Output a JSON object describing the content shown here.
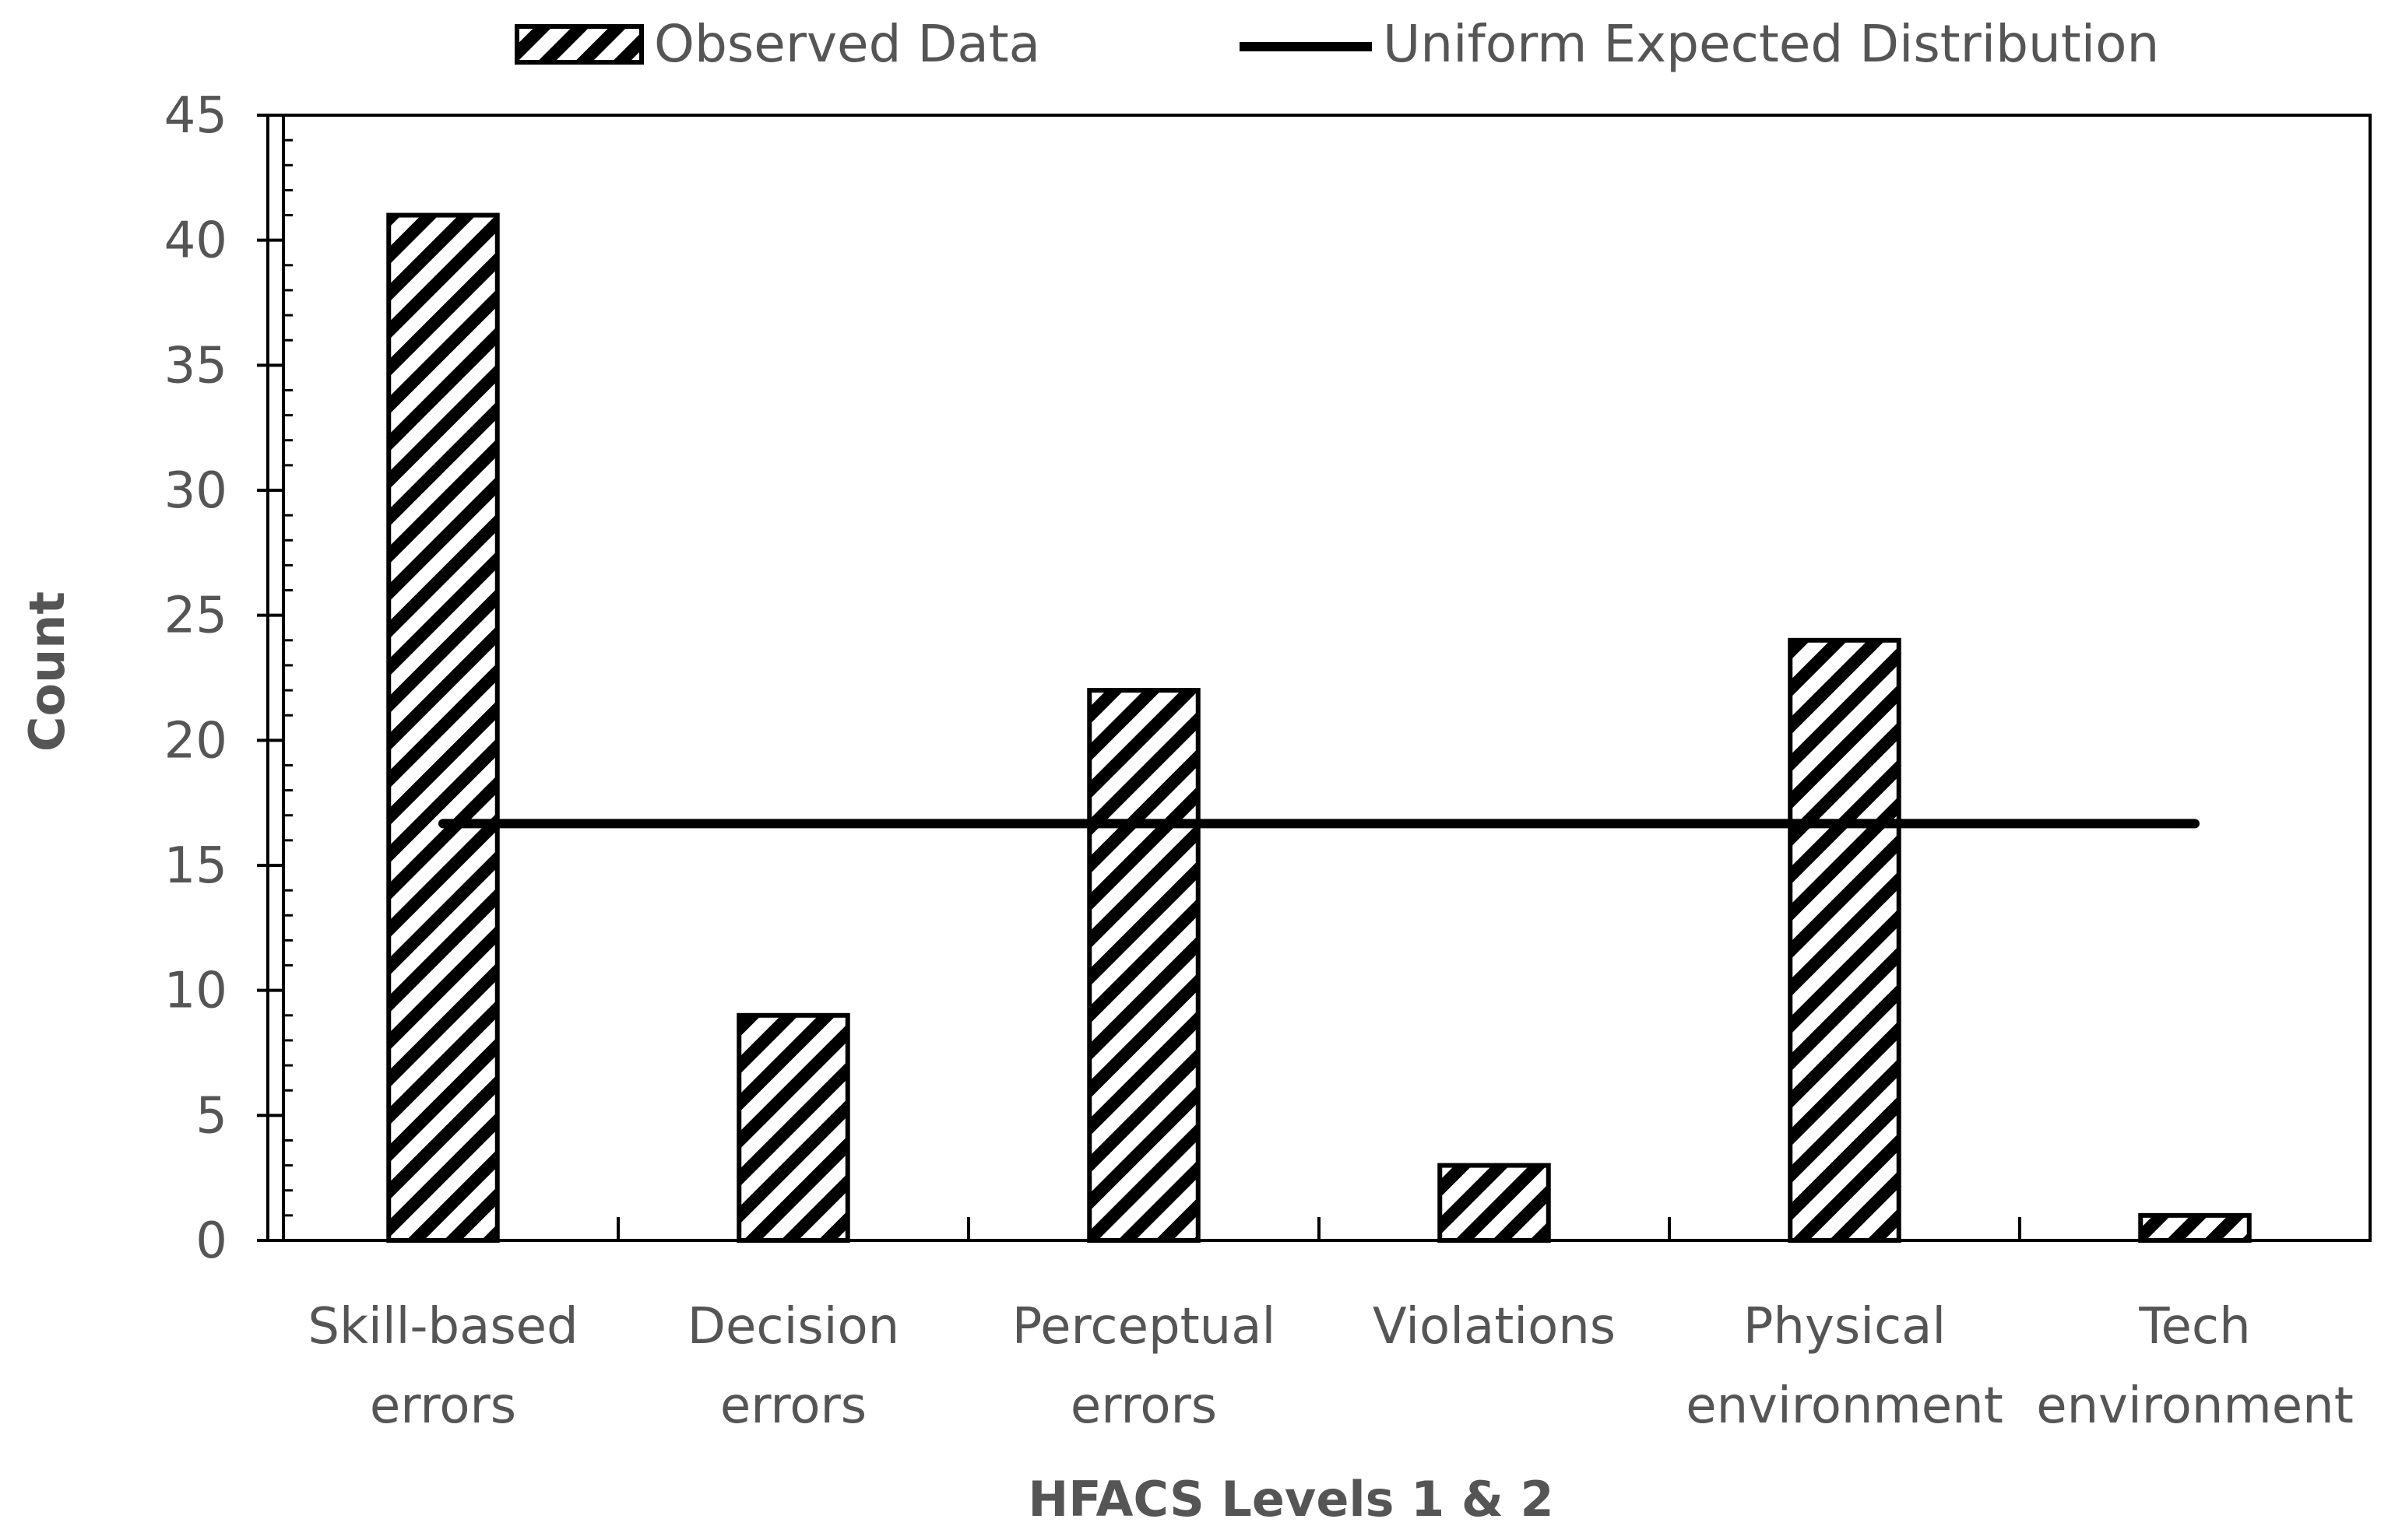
{
  "chart_data": {
    "type": "bar",
    "categories": [
      [
        "Skill-based",
        "errors"
      ],
      [
        "Decision",
        "errors"
      ],
      [
        "Perceptual",
        "errors"
      ],
      [
        "Violations"
      ],
      [
        "Physical",
        "environment"
      ],
      [
        "Tech",
        "environment"
      ]
    ],
    "series": [
      {
        "name": "Observed Data",
        "kind": "bar",
        "values": [
          41,
          9,
          22,
          3,
          24,
          1
        ]
      },
      {
        "name": "Uniform Expected Distribution",
        "kind": "line",
        "values": [
          16.67,
          16.67,
          16.67,
          16.67,
          16.67,
          16.67
        ]
      }
    ],
    "xlabel": "HFACS Levels 1 & 2",
    "ylabel": "Count",
    "ylim": [
      0,
      45
    ],
    "yticks": [
      0,
      5,
      10,
      15,
      20,
      25,
      30,
      35,
      40,
      45
    ],
    "legend_position": "top",
    "grid": false,
    "colors": {
      "bar_fill": "#ffffff",
      "hatch": "#000000",
      "line": "#000000",
      "axis": "#000000",
      "text": "#555555"
    }
  }
}
